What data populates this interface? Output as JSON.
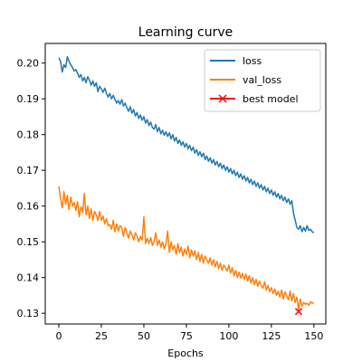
{
  "chart_data": {
    "type": "line",
    "title": "Learning curve",
    "xlabel": "Epochs",
    "ylabel": "",
    "xlim": [
      -8,
      157
    ],
    "ylim": [
      0.127,
      0.2055
    ],
    "xticks": [
      0,
      25,
      50,
      75,
      100,
      125,
      150
    ],
    "yticks": [
      0.13,
      0.14,
      0.15,
      0.16,
      0.17,
      0.18,
      0.19,
      0.2
    ],
    "ytick_labels": [
      "0.13",
      "0.14",
      "0.15",
      "0.16",
      "0.17",
      "0.18",
      "0.19",
      "0.20"
    ],
    "grid": false,
    "legend_position": "top-right",
    "x_step": 1,
    "series": [
      {
        "name": "loss",
        "color": "#1f77b4",
        "values": [
          0.2015,
          0.2005,
          0.1975,
          0.1995,
          0.1988,
          0.2018,
          0.2005,
          0.1995,
          0.1988,
          0.1978,
          0.1982,
          0.1972,
          0.196,
          0.1968,
          0.195,
          0.196,
          0.1945,
          0.1962,
          0.1952,
          0.1938,
          0.195,
          0.1935,
          0.1945,
          0.192,
          0.1935,
          0.1928,
          0.1918,
          0.193,
          0.1915,
          0.1905,
          0.1915,
          0.19,
          0.191,
          0.1898,
          0.1888,
          0.1895,
          0.1885,
          0.1898,
          0.188,
          0.1888,
          0.1875,
          0.1865,
          0.1878,
          0.186,
          0.187,
          0.1852,
          0.1862,
          0.1845,
          0.1855,
          0.184,
          0.185,
          0.1832,
          0.1842,
          0.1825,
          0.1835,
          0.182,
          0.1815,
          0.1828,
          0.1808,
          0.182,
          0.1802,
          0.1812,
          0.1798,
          0.1808,
          0.1795,
          0.1805,
          0.1788,
          0.18,
          0.1782,
          0.1792,
          0.1775,
          0.1785,
          0.177,
          0.178,
          0.1765,
          0.1775,
          0.176,
          0.177,
          0.1755,
          0.1765,
          0.1748,
          0.1758,
          0.1742,
          0.1752,
          0.1738,
          0.1748,
          0.173,
          0.174,
          0.1725,
          0.1735,
          0.172,
          0.173,
          0.1715,
          0.1725,
          0.171,
          0.172,
          0.1705,
          0.1715,
          0.17,
          0.171,
          0.1695,
          0.1705,
          0.169,
          0.17,
          0.1685,
          0.1695,
          0.168,
          0.169,
          0.1675,
          0.1685,
          0.167,
          0.168,
          0.1665,
          0.1675,
          0.166,
          0.167,
          0.1655,
          0.1665,
          0.165,
          0.166,
          0.1645,
          0.1655,
          0.164,
          0.165,
          0.1635,
          0.1645,
          0.163,
          0.164,
          0.1625,
          0.1635,
          0.162,
          0.163,
          0.1615,
          0.1625,
          0.161,
          0.162,
          0.1605,
          0.1615,
          0.158,
          0.156,
          0.154,
          0.1535,
          0.1545,
          0.1528,
          0.154,
          0.153,
          0.1545,
          0.1532,
          0.1535,
          0.1528,
          0.1525
        ]
      },
      {
        "name": "val_loss",
        "color": "#ff7f0e",
        "values": [
          0.1655,
          0.162,
          0.1595,
          0.164,
          0.1605,
          0.163,
          0.159,
          0.1625,
          0.16,
          0.161,
          0.1588,
          0.1612,
          0.157,
          0.1598,
          0.1582,
          0.1635,
          0.1575,
          0.16,
          0.1565,
          0.1592,
          0.156,
          0.1585,
          0.1575,
          0.156,
          0.1585,
          0.156,
          0.1572,
          0.155,
          0.1565,
          0.1545,
          0.1548,
          0.1535,
          0.156,
          0.1528,
          0.155,
          0.153,
          0.1545,
          0.154,
          0.1515,
          0.154,
          0.1525,
          0.151,
          0.153,
          0.152,
          0.1505,
          0.1525,
          0.1515,
          0.15,
          0.1515,
          0.1505,
          0.157,
          0.1495,
          0.151,
          0.1495,
          0.1512,
          0.149,
          0.15,
          0.1525,
          0.149,
          0.1505,
          0.1485,
          0.15,
          0.148,
          0.1495,
          0.153,
          0.147,
          0.15,
          0.1478,
          0.149,
          0.1465,
          0.1495,
          0.147,
          0.1485,
          0.146,
          0.148,
          0.1465,
          0.1488,
          0.1455,
          0.1478,
          0.146,
          0.1475,
          0.145,
          0.147,
          0.1445,
          0.1465,
          0.144,
          0.146,
          0.145,
          0.144,
          0.1455,
          0.1435,
          0.145,
          0.143,
          0.1445,
          0.1425,
          0.144,
          0.142,
          0.1435,
          0.1428,
          0.1418,
          0.1435,
          0.1412,
          0.1428,
          0.1405,
          0.142,
          0.14,
          0.1415,
          0.1398,
          0.1412,
          0.1395,
          0.141,
          0.139,
          0.1405,
          0.1385,
          0.14,
          0.138,
          0.1395,
          0.1375,
          0.139,
          0.1378,
          0.137,
          0.1388,
          0.1365,
          0.1378,
          0.136,
          0.1372,
          0.1355,
          0.1368,
          0.135,
          0.1362,
          0.1345,
          0.1365,
          0.134,
          0.136,
          0.1348,
          0.1338,
          0.1362,
          0.1335,
          0.1355,
          0.133,
          0.1345,
          0.131,
          0.134,
          0.132,
          0.133,
          0.1325,
          0.1328,
          0.1322,
          0.1332,
          0.1328,
          0.133
        ]
      }
    ],
    "markers": [
      {
        "name": "best model",
        "color": "#ff0000",
        "x": 141,
        "y": 0.1305,
        "marker": "x"
      }
    ]
  }
}
